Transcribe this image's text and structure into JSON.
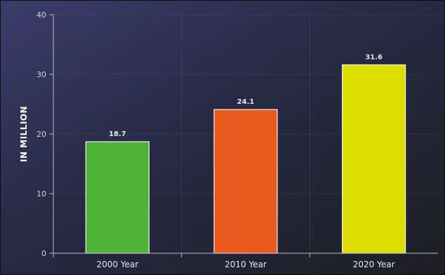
{
  "chart_data": {
    "type": "bar",
    "categories": [
      "2000 Year",
      "2010 Year",
      "2020 Year"
    ],
    "values": [
      18.7,
      24.1,
      31.6
    ],
    "data_labels": [
      "18.7",
      "24.1",
      "31.6"
    ],
    "bar_colors": [
      "#4db236",
      "#ea5a1d",
      "#dddd00"
    ],
    "ylabel": "IN MILLION",
    "xlabel": "",
    "ylim": [
      0,
      40
    ],
    "yticks": [
      0,
      10,
      20,
      30,
      40
    ],
    "ytick_labels": [
      "0",
      "10",
      "20",
      "30",
      "40"
    ],
    "grid": true,
    "legend": "none"
  }
}
